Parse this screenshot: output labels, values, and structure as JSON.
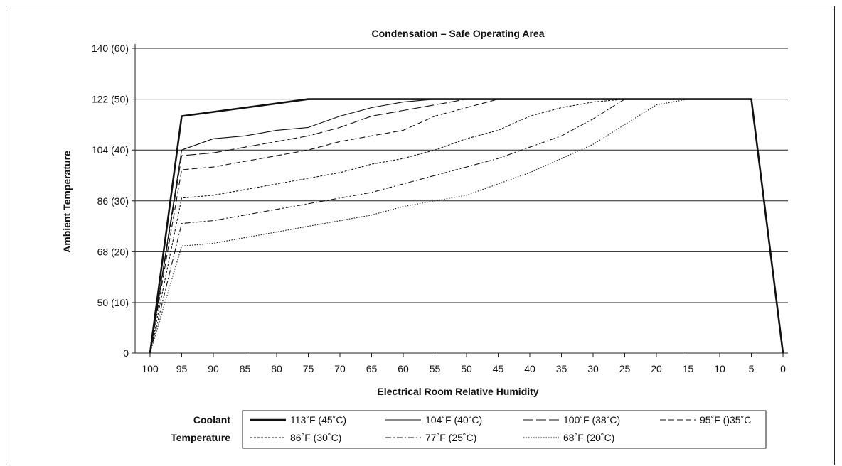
{
  "chart_data": {
    "type": "line",
    "title": "Condensation – Safe Operating Area",
    "xlabel": "Electrical Room Relative Humidity",
    "ylabel": "Ambient Temperature",
    "x_ticks": [
      "100",
      "95",
      "90",
      "85",
      "80",
      "75",
      "70",
      "65",
      "60",
      "55",
      "50",
      "45",
      "40",
      "35",
      "30",
      "25",
      "20",
      "15",
      "10",
      "5",
      "0"
    ],
    "y_ticks": [
      {
        "value": 0,
        "label": "0"
      },
      {
        "value": 50,
        "label": "50 (10)"
      },
      {
        "value": 68,
        "label": "68 (20)"
      },
      {
        "value": 86,
        "label": "86 (30)"
      },
      {
        "value": 104,
        "label": "104 (40)"
      },
      {
        "value": 122,
        "label": "122 (50)"
      },
      {
        "value": 140,
        "label": "140 (60)"
      }
    ],
    "xlim": [
      100,
      0
    ],
    "ylim": [
      0,
      140
    ],
    "grid": "horizontal",
    "legend_title": [
      "Coolant",
      "Temperature"
    ],
    "series": [
      {
        "name": "113˚F (45˚C)",
        "style": "thick",
        "points": [
          [
            100,
            0
          ],
          [
            95,
            116
          ],
          [
            75,
            122
          ],
          [
            5,
            122
          ],
          [
            0,
            0
          ]
        ]
      },
      {
        "name": "104˚F (40˚C)",
        "style": "solid",
        "points": [
          [
            100,
            0
          ],
          [
            95,
            104
          ],
          [
            90,
            108
          ],
          [
            85,
            109
          ],
          [
            80,
            111
          ],
          [
            75,
            112
          ],
          [
            70,
            116
          ],
          [
            65,
            119
          ],
          [
            60,
            121
          ],
          [
            55,
            122
          ],
          [
            5,
            122
          ]
        ]
      },
      {
        "name": "100˚F (38˚C)",
        "style": "longdash",
        "points": [
          [
            100,
            0
          ],
          [
            95,
            102
          ],
          [
            90,
            103
          ],
          [
            85,
            105
          ],
          [
            80,
            107
          ],
          [
            75,
            109
          ],
          [
            70,
            112
          ],
          [
            65,
            116
          ],
          [
            60,
            118
          ],
          [
            55,
            120
          ],
          [
            50,
            122
          ],
          [
            5,
            122
          ]
        ]
      },
      {
        "name": "95˚F ()35˚C",
        "style": "dash",
        "points": [
          [
            100,
            0
          ],
          [
            95,
            97
          ],
          [
            90,
            98
          ],
          [
            85,
            100
          ],
          [
            80,
            102
          ],
          [
            75,
            104
          ],
          [
            70,
            107
          ],
          [
            65,
            109
          ],
          [
            60,
            111
          ],
          [
            55,
            116
          ],
          [
            50,
            119
          ],
          [
            45,
            122
          ],
          [
            5,
            122
          ]
        ]
      },
      {
        "name": "86˚F (30˚C)",
        "style": "shortdash",
        "points": [
          [
            100,
            0
          ],
          [
            95,
            87
          ],
          [
            90,
            88
          ],
          [
            85,
            90
          ],
          [
            80,
            92
          ],
          [
            75,
            94
          ],
          [
            70,
            96
          ],
          [
            65,
            99
          ],
          [
            60,
            101
          ],
          [
            55,
            104
          ],
          [
            50,
            108
          ],
          [
            45,
            111
          ],
          [
            40,
            116
          ],
          [
            35,
            119
          ],
          [
            30,
            121
          ],
          [
            25,
            122
          ],
          [
            5,
            122
          ]
        ]
      },
      {
        "name": "77˚F (25˚C)",
        "style": "dashdot",
        "points": [
          [
            100,
            0
          ],
          [
            95,
            78
          ],
          [
            90,
            79
          ],
          [
            85,
            81
          ],
          [
            80,
            83
          ],
          [
            75,
            85
          ],
          [
            70,
            87
          ],
          [
            65,
            89
          ],
          [
            60,
            92
          ],
          [
            55,
            95
          ],
          [
            50,
            98
          ],
          [
            45,
            101
          ],
          [
            40,
            105
          ],
          [
            35,
            109
          ],
          [
            30,
            115
          ],
          [
            25,
            122
          ],
          [
            5,
            122
          ]
        ]
      },
      {
        "name": "68˚F (20˚C)",
        "style": "dotted",
        "points": [
          [
            100,
            0
          ],
          [
            95,
            70
          ],
          [
            90,
            71
          ],
          [
            85,
            73
          ],
          [
            80,
            75
          ],
          [
            75,
            77
          ],
          [
            70,
            79
          ],
          [
            65,
            81
          ],
          [
            60,
            84
          ],
          [
            55,
            86
          ],
          [
            50,
            88
          ],
          [
            45,
            92
          ],
          [
            40,
            96
          ],
          [
            35,
            101
          ],
          [
            30,
            106
          ],
          [
            25,
            113
          ],
          [
            20,
            120
          ],
          [
            15,
            122
          ],
          [
            5,
            122
          ]
        ]
      }
    ]
  }
}
